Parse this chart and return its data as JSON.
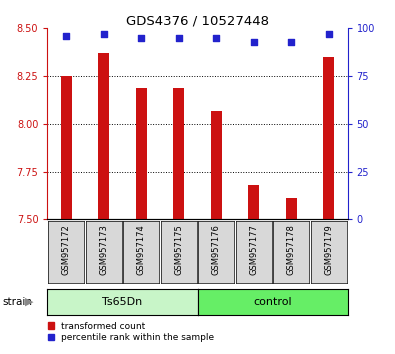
{
  "title": "GDS4376 / 10527448",
  "samples": [
    "GSM957172",
    "GSM957173",
    "GSM957174",
    "GSM957175",
    "GSM957176",
    "GSM957177",
    "GSM957178",
    "GSM957179"
  ],
  "red_values": [
    8.25,
    8.37,
    8.19,
    8.19,
    8.07,
    7.68,
    7.61,
    8.35
  ],
  "blue_values": [
    96,
    97,
    95,
    95,
    95,
    93,
    93,
    97
  ],
  "ylim_left": [
    7.5,
    8.5
  ],
  "ylim_right": [
    0,
    100
  ],
  "yticks_left": [
    7.5,
    7.75,
    8.0,
    8.25,
    8.5
  ],
  "yticks_right": [
    0,
    25,
    50,
    75,
    100
  ],
  "group_labels": [
    "Ts65Dn",
    "control"
  ],
  "group_colors": [
    "#c8f5c8",
    "#66ee66"
  ],
  "strain_label": "strain",
  "bar_color": "#cc1111",
  "dot_color": "#2222cc",
  "tick_box_color": "#d8d8d8",
  "plot_bg": "#ffffff",
  "legend_items": [
    "transformed count",
    "percentile rank within the sample"
  ],
  "baseline": 7.5,
  "bar_width": 0.3
}
